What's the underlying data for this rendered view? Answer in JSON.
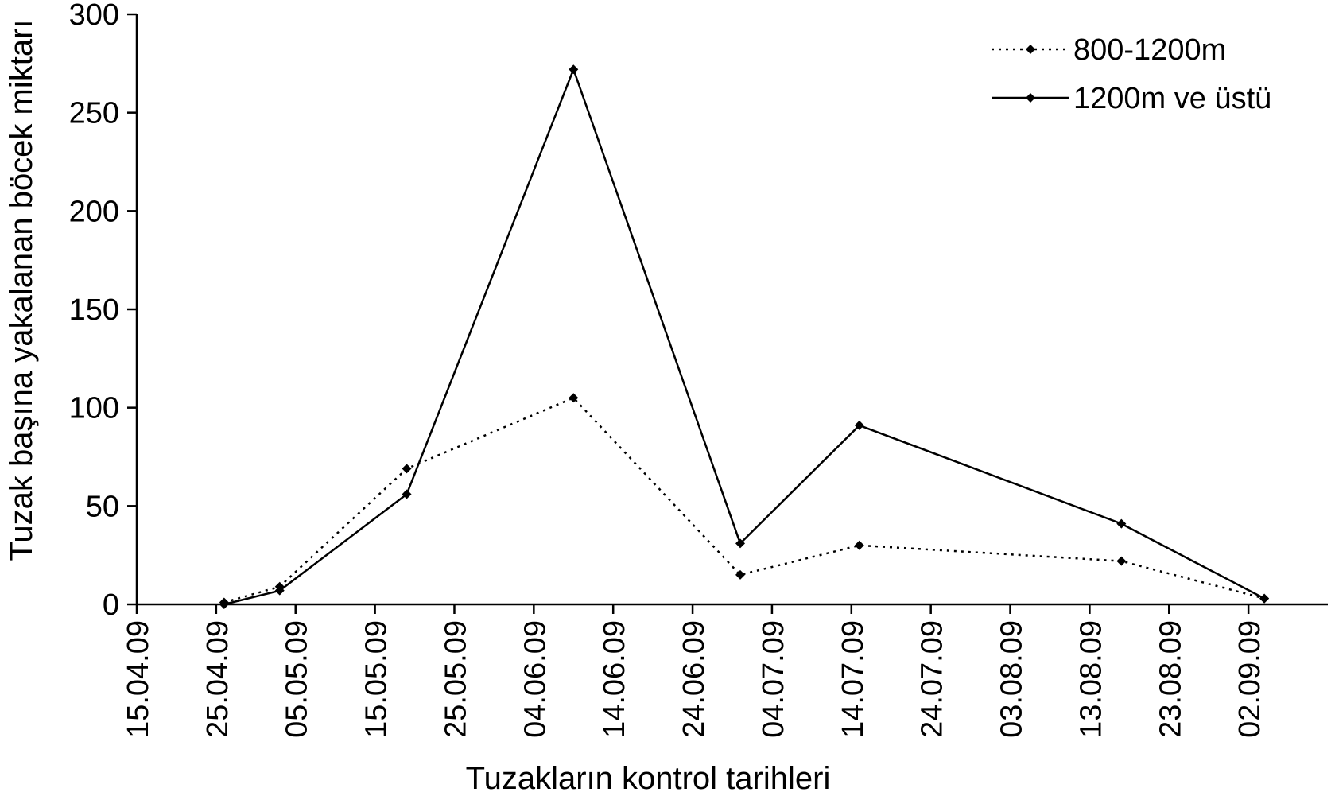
{
  "chart_data": {
    "type": "line",
    "xlabel": "Tuzakların kontrol tarihleri",
    "ylabel": "Tuzak başına yakalanan böcek miktarı",
    "ylim": [
      0,
      300
    ],
    "yticks": [
      "0",
      "50",
      "100",
      "150",
      "200",
      "250",
      "300"
    ],
    "xlim": [
      "2009-04-15",
      "2009-09-12"
    ],
    "xticks": [
      {
        "date": "2009-04-15",
        "label": "15.04.09"
      },
      {
        "date": "2009-04-25",
        "label": "25.04.09"
      },
      {
        "date": "2009-05-05",
        "label": "05.05.09"
      },
      {
        "date": "2009-05-15",
        "label": "15.05.09"
      },
      {
        "date": "2009-05-25",
        "label": "25.05.09"
      },
      {
        "date": "2009-06-04",
        "label": "04.06.09"
      },
      {
        "date": "2009-06-14",
        "label": "14.06.09"
      },
      {
        "date": "2009-06-24",
        "label": "24.06.09"
      },
      {
        "date": "2009-07-04",
        "label": "04.07.09"
      },
      {
        "date": "2009-07-14",
        "label": "14.07.09"
      },
      {
        "date": "2009-07-24",
        "label": "24.07.09"
      },
      {
        "date": "2009-08-03",
        "label": "03.08.09"
      },
      {
        "date": "2009-08-13",
        "label": "13.08.09"
      },
      {
        "date": "2009-08-23",
        "label": "23.08.09"
      },
      {
        "date": "2009-09-02",
        "label": "02.09.09"
      }
    ],
    "x": [
      "2009-04-26",
      "2009-05-03",
      "2009-05-19",
      "2009-06-09",
      "2009-06-30",
      "2009-07-15",
      "2009-08-17",
      "2009-09-04"
    ],
    "series": [
      {
        "name": "800-1200m",
        "style": "dotted",
        "color": "#000000",
        "values": [
          1,
          9,
          69,
          105,
          15,
          30,
          22,
          3
        ]
      },
      {
        "name": "1200m ve üstü",
        "style": "solid",
        "color": "#000000",
        "values": [
          0,
          7,
          56,
          272,
          31,
          91,
          41,
          3
        ]
      }
    ],
    "grid": false,
    "legend_position": "top-right"
  }
}
